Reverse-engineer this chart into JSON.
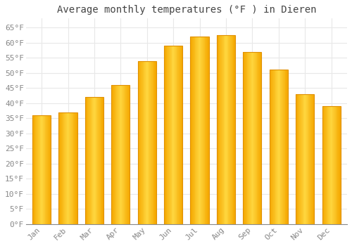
{
  "title": "Average monthly temperatures (°F ) in Dieren",
  "months": [
    "Jan",
    "Feb",
    "Mar",
    "Apr",
    "May",
    "Jun",
    "Jul",
    "Aug",
    "Sep",
    "Oct",
    "Nov",
    "Dec"
  ],
  "values": [
    36.0,
    37.0,
    42.0,
    46.0,
    54.0,
    59.0,
    62.0,
    62.5,
    57.0,
    51.0,
    43.0,
    39.0
  ],
  "bar_color_left": "#F5A800",
  "bar_color_center": "#FFD740",
  "bar_color_right": "#F5A800",
  "bar_edge_color": "#E09000",
  "background_color": "#FFFFFF",
  "grid_color": "#E8E8E8",
  "tick_color": "#888888",
  "title_color": "#444444",
  "ylim": [
    0,
    68
  ],
  "yticks": [
    0,
    5,
    10,
    15,
    20,
    25,
    30,
    35,
    40,
    45,
    50,
    55,
    60,
    65
  ],
  "title_fontsize": 10,
  "tick_fontsize": 8,
  "font_family": "monospace"
}
